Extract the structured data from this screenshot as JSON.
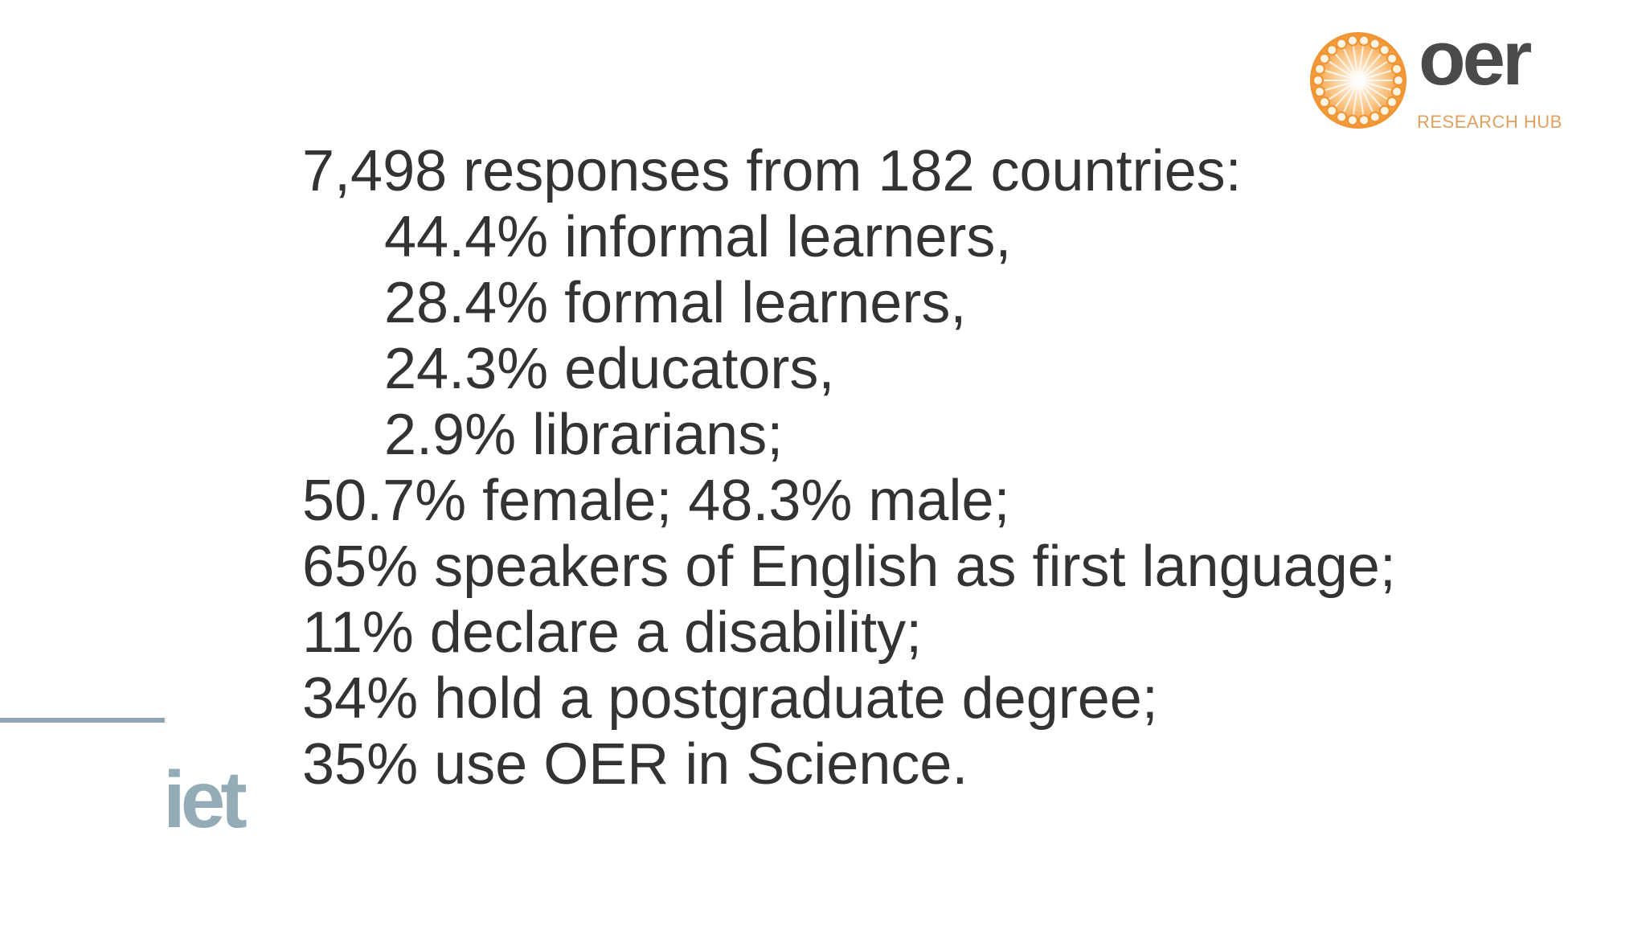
{
  "logos": {
    "oer": {
      "word": "oer",
      "subtitle": "RESEARCH HUB",
      "color_orange": "#f0922e",
      "color_dark": "#4a4a4a"
    },
    "iet": {
      "word": "iet",
      "color": "#94abb8"
    }
  },
  "lines": [
    {
      "text": "7,498 responses from 182 countries:",
      "indent": false
    },
    {
      "text": "44.4% informal learners,",
      "indent": true
    },
    {
      "text": "28.4% formal learners,",
      "indent": true
    },
    {
      "text": "24.3% educators,",
      "indent": true
    },
    {
      "text": "2.9% librarians;",
      "indent": true
    },
    {
      "text": "50.7% female; 48.3% male;",
      "indent": false
    },
    {
      "text": "65% speakers of English as first language;",
      "indent": false
    },
    {
      "text": "11% declare a disability;",
      "indent": false
    },
    {
      "text": "34% hold a postgraduate degree;",
      "indent": false
    },
    {
      "text": "35% use OER in Science.",
      "indent": false
    }
  ]
}
